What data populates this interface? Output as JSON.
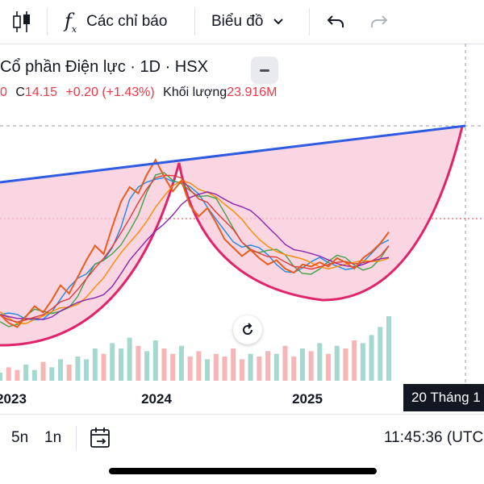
{
  "toolbar": {
    "indicators_label": "Các chỉ báo",
    "chart_type_label": "Biểu đồ"
  },
  "legend": {
    "title": "Cổ phần Điện lực · 1D · HSX",
    "prev_fragment": "0",
    "close_prefix": "C",
    "close_value": "14.15",
    "change": "+0.20 (+1.43%)",
    "volume_label": "Khối lượng",
    "volume_value": "23.916M"
  },
  "x_axis": {
    "ticks": [
      "2023",
      "2024",
      "2025"
    ],
    "crosshair_label": "20 Tháng 1"
  },
  "bottom_bar": {
    "range_5y": "5n",
    "range_1y": "1n",
    "clock": "11:45:36 (UTC"
  },
  "colors": {
    "trendline": "#2f5be0",
    "cup_fill": "#f7c8d8",
    "cup_stroke": "#e0246b",
    "change_red": "#f23645",
    "volume_up": "#a5d8cf",
    "volume_down": "#f7b5b5"
  },
  "chart_data": {
    "type": "line",
    "x_ticks": [
      "2023",
      "2024",
      "2025"
    ],
    "price_series": [
      10.2,
      9.8,
      9.6,
      10.1,
      10.6,
      10.3,
      10.9,
      11.6,
      11.2,
      12.0,
      12.8,
      13.5,
      13.1,
      14.4,
      15.6,
      16.3,
      16.0,
      16.9,
      17.6,
      16.8,
      16.1,
      16.6,
      15.4,
      14.9,
      15.3,
      14.6,
      13.8,
      13.4,
      13.0,
      13.3,
      12.9,
      12.6,
      12.8,
      12.4,
      12.2,
      12.6,
      12.5,
      12.7,
      12.5,
      12.9,
      12.7,
      12.4,
      12.9,
      13.2,
      13.6,
      14.15
    ],
    "volume_series": [
      3,
      5,
      4,
      6,
      4,
      7,
      5,
      8,
      6,
      9,
      8,
      12,
      10,
      14,
      12,
      16,
      13,
      11,
      15,
      12,
      10,
      13,
      9,
      11,
      8,
      10,
      9,
      12,
      8,
      10,
      9,
      11,
      10,
      13,
      9,
      12,
      11,
      14,
      10,
      13,
      12,
      15,
      14,
      17,
      20,
      24
    ],
    "last_close": 14.15,
    "pattern": "cup",
    "trendline": "rising resistance from left edge to last bar"
  }
}
